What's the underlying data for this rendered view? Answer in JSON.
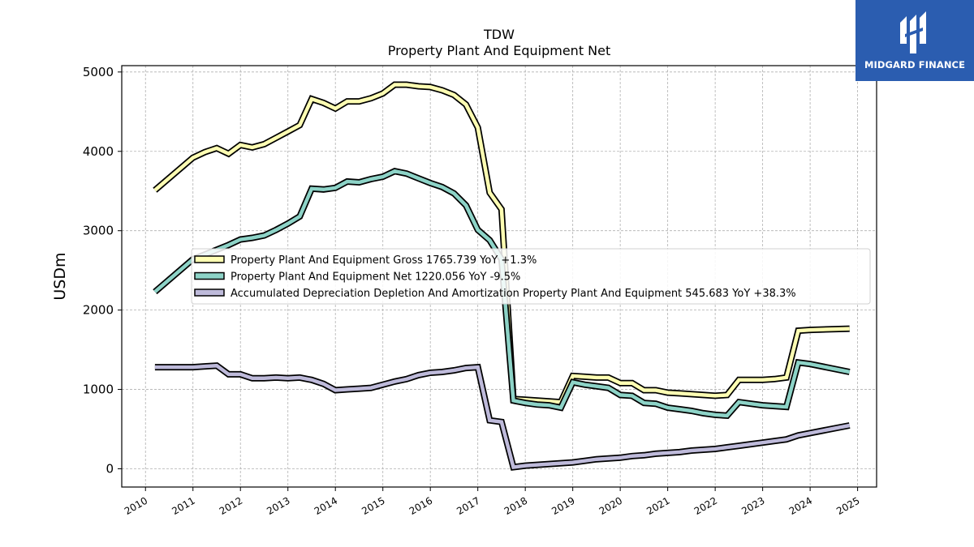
{
  "brand": {
    "name": "MIDGARD FINANCE",
    "logo_icon": "midgard-logo-icon",
    "background": "#2b5db0"
  },
  "chart_data": {
    "type": "line",
    "title": "TDW",
    "subtitle": "Property Plant And Equipment Net",
    "xlabel": "",
    "ylabel": "USDm",
    "xlim": [
      2009.5,
      2025.4
    ],
    "ylim": [
      -230,
      5080
    ],
    "x_ticks": [
      "2010",
      "2011",
      "2012",
      "2013",
      "2014",
      "2015",
      "2016",
      "2017",
      "2018",
      "2019",
      "2020",
      "2021",
      "2022",
      "2023",
      "2024",
      "2025"
    ],
    "y_ticks": [
      0,
      1000,
      2000,
      3000,
      4000,
      5000
    ],
    "y_tick_labels": [
      "0",
      "1000",
      "2000",
      "3000",
      "4000",
      "5000"
    ],
    "grid": true,
    "legend_position": "center-left",
    "series": [
      {
        "name": "Property Plant And Equipment Gross",
        "legend_label": "Property Plant And Equipment Gross  1765.739 YoY +1.3%",
        "color": "#ffffb3",
        "points": [
          [
            2010.2,
            3510
          ],
          [
            2011.0,
            3920
          ],
          [
            2011.25,
            3990
          ],
          [
            2011.5,
            4040
          ],
          [
            2011.75,
            3970
          ],
          [
            2012.0,
            4080
          ],
          [
            2012.25,
            4050
          ],
          [
            2012.5,
            4090
          ],
          [
            2012.75,
            4170
          ],
          [
            2013.0,
            4250
          ],
          [
            2013.25,
            4330
          ],
          [
            2013.5,
            4660
          ],
          [
            2013.75,
            4610
          ],
          [
            2014.0,
            4540
          ],
          [
            2014.25,
            4630
          ],
          [
            2014.5,
            4630
          ],
          [
            2014.75,
            4670
          ],
          [
            2015.0,
            4730
          ],
          [
            2015.25,
            4840
          ],
          [
            2015.5,
            4840
          ],
          [
            2015.75,
            4820
          ],
          [
            2016.0,
            4810
          ],
          [
            2016.25,
            4770
          ],
          [
            2016.5,
            4710
          ],
          [
            2016.75,
            4590
          ],
          [
            2017.0,
            4300
          ],
          [
            2017.25,
            3480
          ],
          [
            2017.5,
            3270
          ],
          [
            2017.75,
            880
          ],
          [
            2018.0,
            870
          ],
          [
            2018.25,
            860
          ],
          [
            2018.5,
            850
          ],
          [
            2018.75,
            840
          ],
          [
            2019.0,
            1170
          ],
          [
            2019.25,
            1160
          ],
          [
            2019.5,
            1150
          ],
          [
            2019.75,
            1150
          ],
          [
            2020.0,
            1080
          ],
          [
            2020.25,
            1080
          ],
          [
            2020.5,
            990
          ],
          [
            2020.75,
            990
          ],
          [
            2021.0,
            960
          ],
          [
            2021.25,
            950
          ],
          [
            2021.5,
            940
          ],
          [
            2021.75,
            930
          ],
          [
            2022.0,
            920
          ],
          [
            2022.25,
            930
          ],
          [
            2022.5,
            1120
          ],
          [
            2022.75,
            1120
          ],
          [
            2023.0,
            1120
          ],
          [
            2023.25,
            1130
          ],
          [
            2023.5,
            1150
          ],
          [
            2023.75,
            1740
          ],
          [
            2024.0,
            1750
          ],
          [
            2024.83,
            1765.739
          ]
        ]
      },
      {
        "name": "Property Plant And Equipment Net",
        "legend_label": "Property Plant And Equipment Net  1220.056 YoY -9.5%",
        "color": "#8dd3c7",
        "points": [
          [
            2010.2,
            2230
          ],
          [
            2011.0,
            2640
          ],
          [
            2011.25,
            2700
          ],
          [
            2011.5,
            2760
          ],
          [
            2011.75,
            2820
          ],
          [
            2012.0,
            2890
          ],
          [
            2012.25,
            2910
          ],
          [
            2012.5,
            2940
          ],
          [
            2012.75,
            3010
          ],
          [
            2013.0,
            3090
          ],
          [
            2013.25,
            3180
          ],
          [
            2013.5,
            3530
          ],
          [
            2013.75,
            3520
          ],
          [
            2014.0,
            3540
          ],
          [
            2014.25,
            3620
          ],
          [
            2014.5,
            3610
          ],
          [
            2014.75,
            3650
          ],
          [
            2015.0,
            3680
          ],
          [
            2015.25,
            3750
          ],
          [
            2015.5,
            3720
          ],
          [
            2015.75,
            3660
          ],
          [
            2016.0,
            3600
          ],
          [
            2016.25,
            3550
          ],
          [
            2016.5,
            3470
          ],
          [
            2016.75,
            3320
          ],
          [
            2017.0,
            3010
          ],
          [
            2017.25,
            2880
          ],
          [
            2017.5,
            2640
          ],
          [
            2017.75,
            860
          ],
          [
            2018.0,
            830
          ],
          [
            2018.25,
            810
          ],
          [
            2018.5,
            800
          ],
          [
            2018.75,
            770
          ],
          [
            2019.0,
            1090
          ],
          [
            2019.25,
            1060
          ],
          [
            2019.5,
            1040
          ],
          [
            2019.75,
            1020
          ],
          [
            2020.0,
            930
          ],
          [
            2020.25,
            920
          ],
          [
            2020.5,
            830
          ],
          [
            2020.75,
            820
          ],
          [
            2021.0,
            770
          ],
          [
            2021.25,
            750
          ],
          [
            2021.5,
            730
          ],
          [
            2021.75,
            700
          ],
          [
            2022.0,
            680
          ],
          [
            2022.25,
            670
          ],
          [
            2022.5,
            840
          ],
          [
            2022.75,
            820
          ],
          [
            2023.0,
            800
          ],
          [
            2023.25,
            790
          ],
          [
            2023.5,
            780
          ],
          [
            2023.75,
            1340
          ],
          [
            2024.0,
            1320
          ],
          [
            2024.83,
            1220.056
          ]
        ]
      },
      {
        "name": "Accumulated Depreciation Depletion And Amortization Property Plant And Equipment",
        "legend_label": "Accumulated Depreciation Depletion And Amortization Property Plant And Equipment  545.683 YoY +38.3%",
        "color": "#bebada",
        "points": [
          [
            2010.2,
            1280
          ],
          [
            2011.0,
            1280
          ],
          [
            2011.25,
            1290
          ],
          [
            2011.5,
            1300
          ],
          [
            2011.75,
            1190
          ],
          [
            2012.0,
            1190
          ],
          [
            2012.25,
            1140
          ],
          [
            2012.5,
            1140
          ],
          [
            2012.75,
            1150
          ],
          [
            2013.0,
            1140
          ],
          [
            2013.25,
            1150
          ],
          [
            2013.5,
            1120
          ],
          [
            2013.75,
            1070
          ],
          [
            2014.0,
            990
          ],
          [
            2014.25,
            1000
          ],
          [
            2014.5,
            1010
          ],
          [
            2014.75,
            1020
          ],
          [
            2015.0,
            1060
          ],
          [
            2015.25,
            1100
          ],
          [
            2015.5,
            1130
          ],
          [
            2015.75,
            1180
          ],
          [
            2016.0,
            1210
          ],
          [
            2016.25,
            1220
          ],
          [
            2016.5,
            1240
          ],
          [
            2016.75,
            1270
          ],
          [
            2017.0,
            1280
          ],
          [
            2017.25,
            610
          ],
          [
            2017.5,
            590
          ],
          [
            2017.75,
            20
          ],
          [
            2018.0,
            40
          ],
          [
            2018.25,
            50
          ],
          [
            2018.5,
            60
          ],
          [
            2018.75,
            70
          ],
          [
            2019.0,
            80
          ],
          [
            2019.25,
            100
          ],
          [
            2019.5,
            120
          ],
          [
            2019.75,
            130
          ],
          [
            2020.0,
            140
          ],
          [
            2020.25,
            160
          ],
          [
            2020.5,
            170
          ],
          [
            2020.75,
            190
          ],
          [
            2021.0,
            200
          ],
          [
            2021.25,
            210
          ],
          [
            2021.5,
            230
          ],
          [
            2021.75,
            240
          ],
          [
            2022.0,
            250
          ],
          [
            2022.25,
            270
          ],
          [
            2022.5,
            290
          ],
          [
            2022.75,
            310
          ],
          [
            2023.0,
            330
          ],
          [
            2023.25,
            350
          ],
          [
            2023.5,
            370
          ],
          [
            2023.75,
            420
          ],
          [
            2024.0,
            450
          ],
          [
            2024.83,
            545.683
          ]
        ]
      }
    ]
  }
}
